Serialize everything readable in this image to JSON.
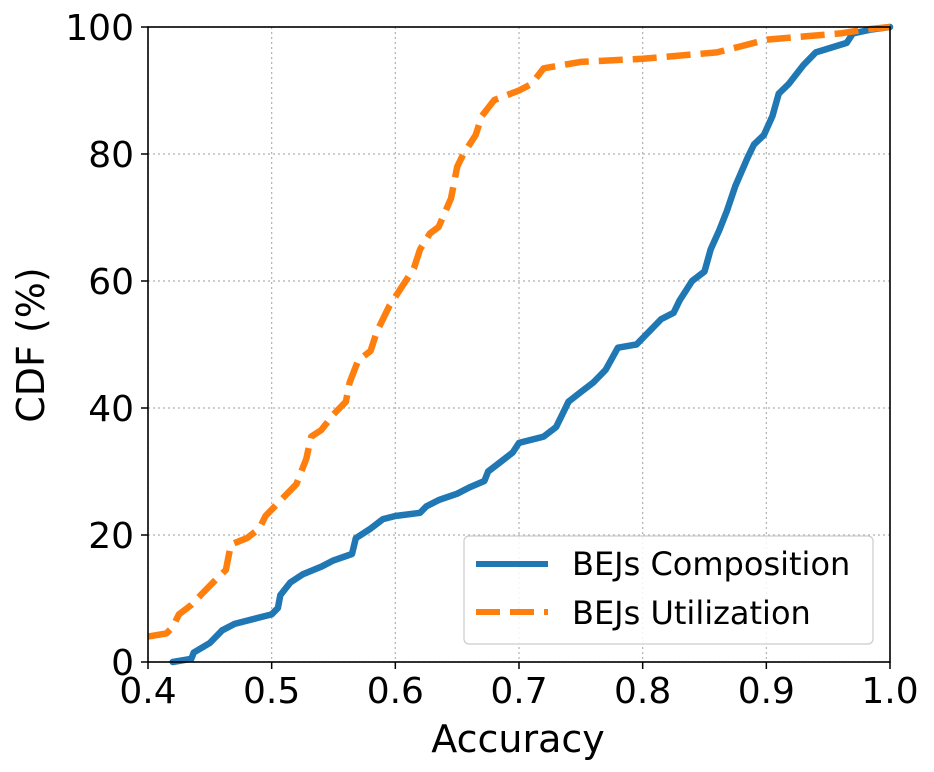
{
  "chart_data": {
    "type": "line",
    "xlabel": "Accuracy",
    "ylabel": "CDF (%)",
    "xlim": [
      0.4,
      1.0
    ],
    "ylim": [
      0,
      100
    ],
    "x_ticks": [
      0.4,
      0.5,
      0.6,
      0.7,
      0.8,
      0.9,
      1.0
    ],
    "x_tick_labels": [
      "0.4",
      "0.5",
      "0.6",
      "0.7",
      "0.8",
      "0.9",
      "1.0"
    ],
    "y_ticks": [
      0,
      20,
      40,
      60,
      80,
      100
    ],
    "y_tick_labels": [
      "0",
      "20",
      "40",
      "60",
      "80",
      "100"
    ],
    "grid": true,
    "legend_position": "bottom-right",
    "series": [
      {
        "name": "BEJs Composition",
        "color": "#1f77b4",
        "style": "solid",
        "points": [
          [
            0.42,
            0
          ],
          [
            0.435,
            0.5
          ],
          [
            0.437,
            1.5
          ],
          [
            0.45,
            3.0
          ],
          [
            0.46,
            5.0
          ],
          [
            0.47,
            6.0
          ],
          [
            0.49,
            7.0
          ],
          [
            0.5,
            7.5
          ],
          [
            0.505,
            8.5
          ],
          [
            0.507,
            10.5
          ],
          [
            0.515,
            12.5
          ],
          [
            0.525,
            13.8
          ],
          [
            0.54,
            15.0
          ],
          [
            0.55,
            16.0
          ],
          [
            0.565,
            17.0
          ],
          [
            0.568,
            19.5
          ],
          [
            0.58,
            21.0
          ],
          [
            0.59,
            22.5
          ],
          [
            0.6,
            23.0
          ],
          [
            0.62,
            23.5
          ],
          [
            0.625,
            24.5
          ],
          [
            0.635,
            25.5
          ],
          [
            0.65,
            26.5
          ],
          [
            0.66,
            27.5
          ],
          [
            0.672,
            28.5
          ],
          [
            0.675,
            30.0
          ],
          [
            0.685,
            31.5
          ],
          [
            0.695,
            33.0
          ],
          [
            0.7,
            34.5
          ],
          [
            0.72,
            35.5
          ],
          [
            0.73,
            37.0
          ],
          [
            0.735,
            39.0
          ],
          [
            0.74,
            41.0
          ],
          [
            0.75,
            42.5
          ],
          [
            0.76,
            44.0
          ],
          [
            0.77,
            46.0
          ],
          [
            0.78,
            49.5
          ],
          [
            0.795,
            50.0
          ],
          [
            0.8,
            51.0
          ],
          [
            0.815,
            54.0
          ],
          [
            0.825,
            55.0
          ],
          [
            0.83,
            57.0
          ],
          [
            0.84,
            60.0
          ],
          [
            0.85,
            61.5
          ],
          [
            0.855,
            65.0
          ],
          [
            0.862,
            68.0
          ],
          [
            0.868,
            71.0
          ],
          [
            0.875,
            75.0
          ],
          [
            0.885,
            79.5
          ],
          [
            0.89,
            81.5
          ],
          [
            0.898,
            83.0
          ],
          [
            0.905,
            86.0
          ],
          [
            0.91,
            89.5
          ],
          [
            0.918,
            91.0
          ],
          [
            0.93,
            94.0
          ],
          [
            0.94,
            96.0
          ],
          [
            0.965,
            97.5
          ],
          [
            0.97,
            99.0
          ],
          [
            0.985,
            99.6
          ],
          [
            1.0,
            100
          ]
        ]
      },
      {
        "name": "BEJs Utilization",
        "color": "#ff7f0e",
        "style": "dashed",
        "points": [
          [
            0.4,
            4.0
          ],
          [
            0.415,
            4.5
          ],
          [
            0.42,
            5.5
          ],
          [
            0.425,
            7.5
          ],
          [
            0.435,
            9.0
          ],
          [
            0.445,
            11.0
          ],
          [
            0.455,
            13.0
          ],
          [
            0.463,
            14.5
          ],
          [
            0.467,
            18.5
          ],
          [
            0.48,
            19.5
          ],
          [
            0.49,
            21.0
          ],
          [
            0.495,
            23.0
          ],
          [
            0.51,
            26.0
          ],
          [
            0.52,
            28.0
          ],
          [
            0.528,
            32.0
          ],
          [
            0.532,
            35.5
          ],
          [
            0.54,
            36.5
          ],
          [
            0.55,
            39.0
          ],
          [
            0.56,
            41.0
          ],
          [
            0.563,
            44.0
          ],
          [
            0.57,
            47.5
          ],
          [
            0.58,
            49.0
          ],
          [
            0.585,
            52.0
          ],
          [
            0.595,
            56.0
          ],
          [
            0.605,
            59.0
          ],
          [
            0.615,
            62.0
          ],
          [
            0.62,
            65.0
          ],
          [
            0.628,
            67.5
          ],
          [
            0.635,
            68.5
          ],
          [
            0.645,
            73.0
          ],
          [
            0.65,
            78.0
          ],
          [
            0.655,
            80.0
          ],
          [
            0.665,
            83.0
          ],
          [
            0.67,
            86.0
          ],
          [
            0.68,
            88.5
          ],
          [
            0.7,
            90.0
          ],
          [
            0.71,
            91.0
          ],
          [
            0.72,
            93.5
          ],
          [
            0.75,
            94.5
          ],
          [
            0.8,
            95.0
          ],
          [
            0.86,
            96.0
          ],
          [
            0.88,
            97.0
          ],
          [
            0.9,
            98.0
          ],
          [
            0.93,
            98.5
          ],
          [
            0.96,
            99.0
          ],
          [
            0.98,
            99.6
          ],
          [
            1.0,
            100
          ]
        ]
      }
    ]
  }
}
